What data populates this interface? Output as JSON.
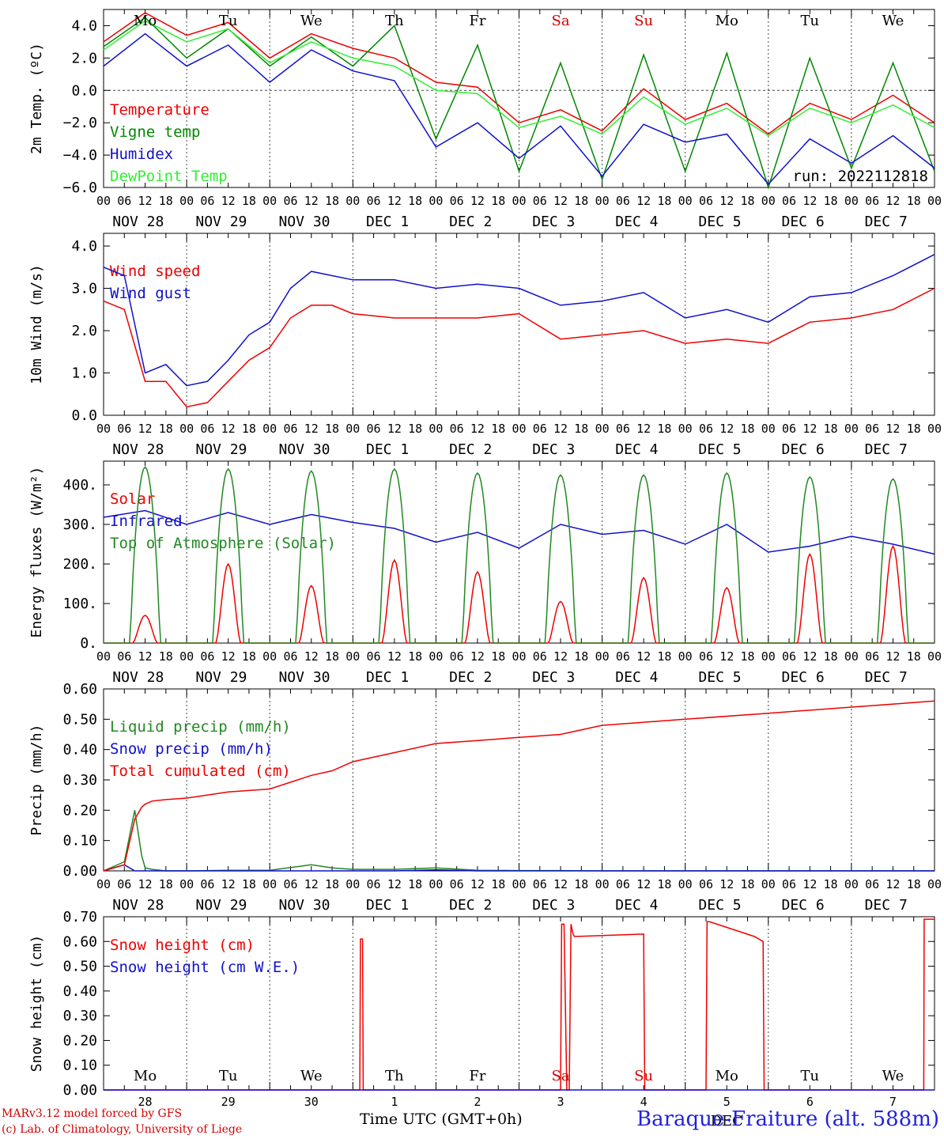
{
  "days": [
    "NOV 28",
    "NOV 29",
    "NOV 30",
    "DEC  1",
    "DEC  2",
    "DEC  3",
    "DEC  4",
    "DEC  5",
    "DEC  6",
    "DEC  7"
  ],
  "weekdays": [
    "Mo",
    "Tu",
    "We",
    "Th",
    "Fr",
    "Sa",
    "Su",
    "Mo",
    "Tu",
    "We"
  ],
  "weekday_colors": [
    "#000000",
    "#000000",
    "#000000",
    "#000000",
    "#000000",
    "#d40000",
    "#d40000",
    "#000000",
    "#000000",
    "#000000"
  ],
  "hour_ticks": [
    "00",
    "06",
    "12",
    "18"
  ],
  "end_tick": "00",
  "snow_day_numbers": [
    "28",
    "29",
    "30",
    "1",
    "2",
    "3",
    "4",
    "5",
    "6",
    "7"
  ],
  "snow_month_label": "DEC",
  "run_label": "run: 2022112818",
  "footer": {
    "line1": "MARv3.12 model forced by GFS",
    "line2": "(c) Lab. of Climatology, University of Liege",
    "time_label": "Time UTC (GMT+0h)",
    "station": "Baraque-Fraiture (alt. 588m)"
  },
  "chart_data": [
    {
      "type": "line",
      "ylabel": "2m Temp. (ºC)",
      "ylim": [
        -6,
        5
      ],
      "yticks": [
        "4.0",
        "2.0",
        "0.0",
        "−2.0",
        "−4.0",
        "−6.0"
      ],
      "ytick_values": [
        4,
        2,
        0,
        -2,
        -4,
        -6
      ],
      "zero_line": true,
      "x": [
        0,
        12,
        24,
        36,
        48,
        60,
        72,
        84,
        96,
        108,
        120,
        132,
        144,
        156,
        168,
        180,
        192,
        204,
        216,
        228,
        240
      ],
      "series": [
        {
          "name": "Temperature",
          "color": "#ee0000",
          "values": [
            3.0,
            4.8,
            3.4,
            4.2,
            2.0,
            3.5,
            2.6,
            2.0,
            0.5,
            0.2,
            -2.0,
            -1.2,
            -2.5,
            0.1,
            -1.8,
            -0.8,
            -2.7,
            -0.8,
            -1.8,
            -0.3,
            -2.0
          ]
        },
        {
          "name": "Vigne temp",
          "color": "#008800",
          "values": [
            2.7,
            4.5,
            2.0,
            3.8,
            1.5,
            3.3,
            1.5,
            4.0,
            -3.0,
            2.8,
            -5.0,
            1.7,
            -5.5,
            2.2,
            -5.0,
            2.3,
            -6.0,
            2.0,
            -4.8,
            1.7,
            -5.0
          ]
        },
        {
          "name": "Humidex",
          "color": "#1010cc",
          "values": [
            1.5,
            3.5,
            1.5,
            2.8,
            0.5,
            2.5,
            1.2,
            0.6,
            -3.5,
            -2.0,
            -4.2,
            -2.2,
            -5.3,
            -2.1,
            -3.2,
            -2.7,
            -5.8,
            -3.0,
            -4.5,
            -2.8,
            -4.8
          ]
        },
        {
          "name": "DewPoint Temp",
          "color": "#33ee33",
          "values": [
            2.5,
            4.3,
            3.0,
            3.8,
            1.7,
            3.0,
            2.0,
            1.5,
            0.0,
            -0.2,
            -2.3,
            -1.6,
            -2.7,
            -0.4,
            -2.1,
            -1.1,
            -2.8,
            -1.1,
            -2.0,
            -0.9,
            -2.3
          ]
        }
      ]
    },
    {
      "type": "line",
      "ylabel": "10m Wind (m/s)",
      "ylim": [
        0,
        4.3
      ],
      "yticks": [
        "4.0",
        "3.0",
        "2.0",
        "1.0",
        "0.0"
      ],
      "ytick_values": [
        4,
        3,
        2,
        1,
        0
      ],
      "x": [
        0,
        6,
        12,
        18,
        24,
        30,
        36,
        42,
        48,
        54,
        60,
        66,
        72,
        84,
        96,
        108,
        120,
        132,
        144,
        156,
        168,
        180,
        192,
        204,
        216,
        228,
        240
      ],
      "series": [
        {
          "name": "Wind speed",
          "color": "#ee0000",
          "values": [
            2.7,
            2.5,
            0.8,
            0.8,
            0.2,
            0.3,
            0.8,
            1.3,
            1.6,
            2.3,
            2.6,
            2.6,
            2.4,
            2.3,
            2.3,
            2.3,
            2.4,
            1.8,
            1.9,
            2.0,
            1.7,
            1.8,
            1.7,
            2.2,
            2.3,
            2.5,
            3.0
          ]
        },
        {
          "name": "Wind gust",
          "color": "#1010cc",
          "values": [
            3.5,
            3.3,
            1.0,
            1.2,
            0.7,
            0.8,
            1.3,
            1.9,
            2.2,
            3.0,
            3.4,
            3.3,
            3.2,
            3.2,
            3.0,
            3.1,
            3.0,
            2.6,
            2.7,
            2.9,
            2.3,
            2.5,
            2.2,
            2.8,
            2.9,
            3.3,
            3.8
          ]
        }
      ]
    },
    {
      "type": "line",
      "ylabel": "Energy fluxes (W/m²)",
      "ylim": [
        0,
        460
      ],
      "yticks": [
        "400.",
        "300.",
        "200.",
        "100.",
        "0."
      ],
      "ytick_values": [
        400,
        300,
        200,
        100,
        0
      ],
      "day_peaks": {
        "Solar": [
          70,
          200,
          145,
          210,
          180,
          105,
          165,
          140,
          225,
          245
        ],
        "Top of Atmosphere (Solar)": [
          445,
          440,
          435,
          440,
          430,
          425,
          425,
          430,
          420,
          415
        ]
      },
      "x": [
        0,
        12,
        24,
        36,
        48,
        60,
        72,
        84,
        96,
        108,
        120,
        132,
        144,
        156,
        168,
        180,
        192,
        204,
        216,
        228,
        240
      ],
      "series": [
        {
          "name": "Solar",
          "color": "#ee0000",
          "shape": "diurnal"
        },
        {
          "name": "Infrared",
          "color": "#1010cc",
          "values": [
            318,
            335,
            300,
            330,
            300,
            325,
            305,
            290,
            255,
            280,
            240,
            300,
            275,
            285,
            250,
            300,
            230,
            245,
            270,
            250,
            225
          ]
        },
        {
          "name": "Top of Atmosphere (Solar)",
          "color": "#228822",
          "shape": "diurnal"
        }
      ]
    },
    {
      "type": "line",
      "ylabel": "Precip (mm/h)",
      "ylim": [
        0,
        0.6
      ],
      "yticks": [
        "0.60",
        "0.50",
        "0.40",
        "0.30",
        "0.20",
        "0.10",
        "0.00"
      ],
      "ytick_values": [
        0.6,
        0.5,
        0.4,
        0.3,
        0.2,
        0.1,
        0.0
      ],
      "x": [
        0,
        6,
        9,
        11,
        12,
        14,
        18,
        24,
        36,
        48,
        60,
        66,
        72,
        84,
        96,
        108,
        120,
        132,
        144,
        168,
        192,
        216,
        240
      ],
      "series": [
        {
          "name": "Liquid precip (mm/h)",
          "color": "#228822",
          "values": [
            0.0,
            0.03,
            0.2,
            0.05,
            0.01,
            0.005,
            0.0,
            0.0,
            0.002,
            0.002,
            0.02,
            0.01,
            0.005,
            0.005,
            0.01,
            0.002,
            0.001,
            0.001,
            0.0,
            0.0,
            0.0,
            0.0,
            0.0
          ]
        },
        {
          "name": "Snow precip (mm/h)",
          "color": "#1010cc",
          "values": [
            0.0,
            0.02,
            0.0,
            0.0,
            0.0,
            0.0,
            0.0,
            0.0,
            0.0,
            0.0,
            0.0,
            0.0,
            0.0,
            0.0,
            0.003,
            0.0,
            0.0,
            0.0,
            0.0,
            0.0,
            0.0,
            0.0,
            0.0
          ]
        },
        {
          "name": "Total cumulated (cm)",
          "color": "#ee0000",
          "values": [
            0.0,
            0.02,
            0.17,
            0.21,
            0.22,
            0.23,
            0.235,
            0.24,
            0.26,
            0.27,
            0.315,
            0.33,
            0.36,
            0.39,
            0.42,
            0.43,
            0.44,
            0.45,
            0.48,
            0.5,
            0.52,
            0.54,
            0.56
          ]
        }
      ]
    },
    {
      "type": "line",
      "ylabel": "Snow height (cm)",
      "ylim": [
        0,
        0.7
      ],
      "yticks": [
        "0.70",
        "0.60",
        "0.50",
        "0.40",
        "0.30",
        "0.20",
        "0.10",
        "0.00"
      ],
      "ytick_values": [
        0.7,
        0.6,
        0.5,
        0.4,
        0.3,
        0.2,
        0.1,
        0.0
      ],
      "x": [
        0,
        74,
        74.2,
        74.8,
        75,
        132,
        132.3,
        133,
        133.8,
        134.5,
        135,
        135.6,
        136,
        156,
        156.3,
        174,
        174.3,
        175,
        188,
        190.5,
        190.8,
        236.9,
        237,
        240
      ],
      "series": [
        {
          "name": "Snow height (cm)",
          "color": "#ee0000",
          "values": [
            0.0,
            0.0,
            0.61,
            0.61,
            0.0,
            0.0,
            0.67,
            0.67,
            0.0,
            0.0,
            0.67,
            0.63,
            0.62,
            0.63,
            0.0,
            0.0,
            0.68,
            0.68,
            0.62,
            0.6,
            0.0,
            0.0,
            0.69,
            0.69
          ]
        },
        {
          "name": "Snow height (cm W.E.)",
          "color": "#1010cc",
          "values": [
            0.0,
            0.0,
            0.0,
            0.0,
            0.0,
            0.0,
            0.0,
            0.0,
            0.0,
            0.0,
            0.0,
            0.0,
            0.0,
            0.0,
            0.0,
            0.0,
            0.0,
            0.0,
            0.0,
            0.0,
            0.0,
            0.0,
            0.0,
            0.0
          ]
        }
      ]
    }
  ]
}
